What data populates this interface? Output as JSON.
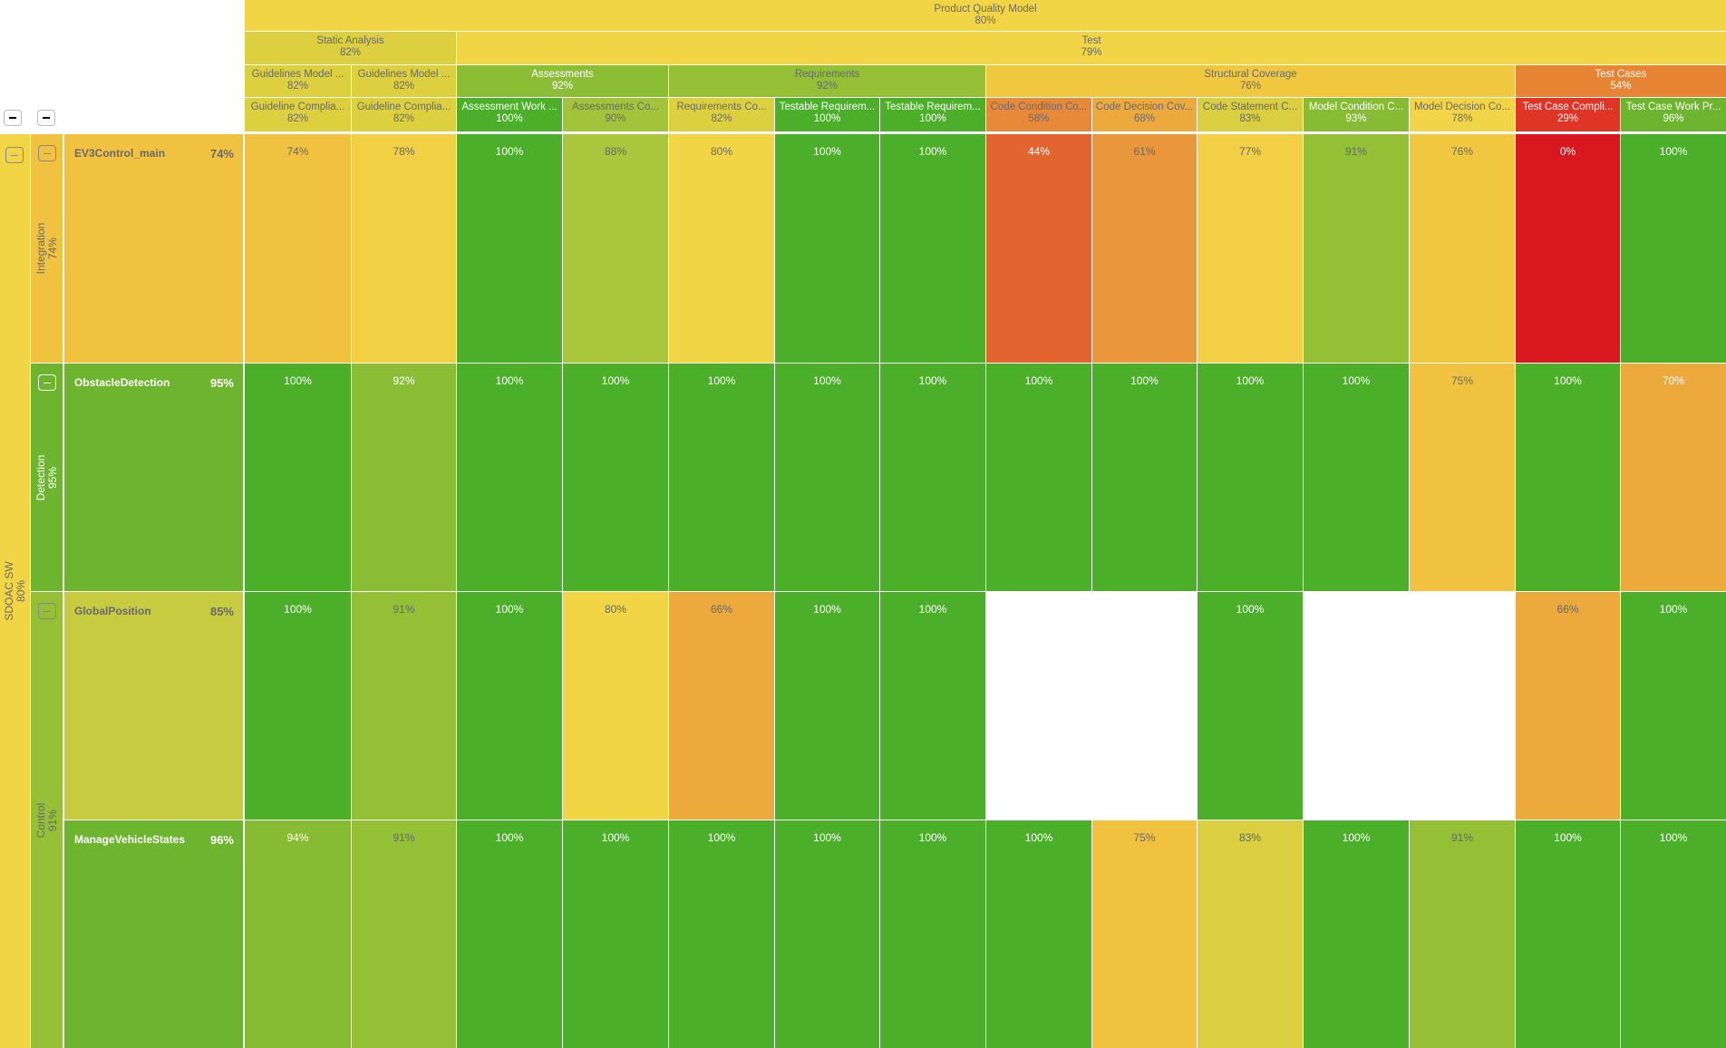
{
  "header": {
    "level1": [
      {
        "label": "Product Quality Model",
        "pct": "80%",
        "span": 14,
        "color": "#f2d544",
        "tone": "dark"
      }
    ],
    "level2": [
      {
        "label": "Static Analysis",
        "pct": "82%",
        "span": 2,
        "color": "#dcd03e",
        "tone": "dark"
      },
      {
        "label": "Test",
        "pct": "79%",
        "span": 12,
        "color": "#f2d544",
        "tone": "dark"
      }
    ],
    "level3": [
      {
        "label": "Guidelines Model ...",
        "pct": "82%",
        "span": 1,
        "color": "#dcd03e",
        "tone": "dark"
      },
      {
        "label": "Guidelines Model ...",
        "pct": "82%",
        "span": 1,
        "color": "#dcd03e",
        "tone": "dark"
      },
      {
        "label": "Assessments",
        "pct": "92%",
        "span": 2,
        "color": "#8bbd35",
        "tone": "light"
      },
      {
        "label": "Requirements",
        "pct": "92%",
        "span": 3,
        "color": "#95bf35",
        "tone": "dark"
      },
      {
        "label": "Structural Coverage",
        "pct": "76%",
        "span": 5,
        "color": "#f0c840",
        "tone": "dark"
      },
      {
        "label": "Test Cases",
        "pct": "54%",
        "span": 2,
        "color": "#e88534",
        "tone": "light"
      }
    ],
    "level4": [
      {
        "label": "Guideline Complia...",
        "pct": "82%",
        "span": 1,
        "color": "#dcd03e",
        "tone": "dark"
      },
      {
        "label": "Guideline Complia...",
        "pct": "82%",
        "span": 1,
        "color": "#dcd03e",
        "tone": "dark"
      },
      {
        "label": "Assessment Work ...",
        "pct": "100%",
        "span": 1,
        "color": "#4caf2a",
        "tone": "light"
      },
      {
        "label": "Assessments Co...",
        "pct": "90%",
        "span": 1,
        "color": "#a2c43a",
        "tone": "dark"
      },
      {
        "label": "Requirements Co...",
        "pct": "82%",
        "span": 1,
        "color": "#dcd03e",
        "tone": "dark"
      },
      {
        "label": "Testable Requirem...",
        "pct": "100%",
        "span": 1,
        "color": "#4caf2a",
        "tone": "light"
      },
      {
        "label": "Testable Requirem...",
        "pct": "100%",
        "span": 1,
        "color": "#4caf2a",
        "tone": "light"
      },
      {
        "label": "Code Condition Co...",
        "pct": "58%",
        "span": 1,
        "color": "#e8893a",
        "tone": "dark"
      },
      {
        "label": "Code Decision Cov...",
        "pct": "68%",
        "span": 1,
        "color": "#edaa3c",
        "tone": "dark"
      },
      {
        "label": "Code Statement C...",
        "pct": "83%",
        "span": 1,
        "color": "#d9cf3f",
        "tone": "dark"
      },
      {
        "label": "Model Condition C...",
        "pct": "93%",
        "span": 1,
        "color": "#86bb33",
        "tone": "light"
      },
      {
        "label": "Model Decision Co...",
        "pct": "78%",
        "span": 1,
        "color": "#f2d546",
        "tone": "dark"
      },
      {
        "label": "Test Case Compli...",
        "pct": "29%",
        "span": 1,
        "color": "#de3526",
        "tone": "light"
      },
      {
        "label": "Test Case Work Pr...",
        "pct": "96%",
        "span": 1,
        "color": "#6db52e",
        "tone": "light"
      }
    ]
  },
  "root": {
    "label": "SDOAC SW",
    "pct": "80%",
    "color": "#f2d544",
    "tone": "dark"
  },
  "groups": [
    {
      "label": "Integration",
      "pct": "74%",
      "rows": 1,
      "color": "#f0c240",
      "tone": "dark"
    },
    {
      "label": "Detection",
      "pct": "95%",
      "rows": 1,
      "color": "#6db52e",
      "tone": "light"
    },
    {
      "label": "Control",
      "pct": "91%",
      "rows": 2,
      "color": "#95bf35",
      "tone": "dark"
    }
  ],
  "rows": [
    {
      "label": "EV3Control_main",
      "pct": "74%",
      "color": "#f0c240",
      "tone": "dark",
      "cells": [
        {
          "v": "74%",
          "c": "#f0c240",
          "t": "dark"
        },
        {
          "v": "78%",
          "c": "#f2d044",
          "t": "dark"
        },
        {
          "v": "100%",
          "c": "#4caf2a",
          "t": "light"
        },
        {
          "v": "88%",
          "c": "#a9c63c",
          "t": "dark"
        },
        {
          "v": "80%",
          "c": "#f2d544",
          "t": "dark"
        },
        {
          "v": "100%",
          "c": "#4caf2a",
          "t": "light"
        },
        {
          "v": "100%",
          "c": "#4caf2a",
          "t": "light"
        },
        {
          "v": "44%",
          "c": "#e3642e",
          "t": "light"
        },
        {
          "v": "61%",
          "c": "#ea963a",
          "t": "dark"
        },
        {
          "v": "77%",
          "c": "#f2cf44",
          "t": "dark"
        },
        {
          "v": "91%",
          "c": "#95bf35",
          "t": "dark"
        },
        {
          "v": "76%",
          "c": "#f0c840",
          "t": "dark"
        },
        {
          "v": "0%",
          "c": "#d9171f",
          "t": "light"
        },
        {
          "v": "100%",
          "c": "#4caf2a",
          "t": "light"
        }
      ]
    },
    {
      "label": "ObstacleDetection",
      "pct": "95%",
      "color": "#6db52e",
      "tone": "light",
      "cells": [
        {
          "v": "100%",
          "c": "#4caf2a",
          "t": "light"
        },
        {
          "v": "92%",
          "c": "#8bbd35",
          "t": "light"
        },
        {
          "v": "100%",
          "c": "#4caf2a",
          "t": "light"
        },
        {
          "v": "100%",
          "c": "#4caf2a",
          "t": "light"
        },
        {
          "v": "100%",
          "c": "#4caf2a",
          "t": "light"
        },
        {
          "v": "100%",
          "c": "#4caf2a",
          "t": "light"
        },
        {
          "v": "100%",
          "c": "#4caf2a",
          "t": "light"
        },
        {
          "v": "100%",
          "c": "#4caf2a",
          "t": "light"
        },
        {
          "v": "100%",
          "c": "#4caf2a",
          "t": "light"
        },
        {
          "v": "100%",
          "c": "#4caf2a",
          "t": "light"
        },
        {
          "v": "100%",
          "c": "#4caf2a",
          "t": "light"
        },
        {
          "v": "75%",
          "c": "#f0c240",
          "t": "dark"
        },
        {
          "v": "100%",
          "c": "#4caf2a",
          "t": "light"
        },
        {
          "v": "70%",
          "c": "#edaa3c",
          "t": "light"
        }
      ]
    },
    {
      "label": "GlobalPosition",
      "pct": "85%",
      "color": "#c6cb40",
      "tone": "dark",
      "cells": [
        {
          "v": "100%",
          "c": "#4caf2a",
          "t": "light"
        },
        {
          "v": "91%",
          "c": "#95bf35",
          "t": "dark"
        },
        {
          "v": "100%",
          "c": "#4caf2a",
          "t": "light"
        },
        {
          "v": "80%",
          "c": "#f2d544",
          "t": "dark"
        },
        {
          "v": "66%",
          "c": "#edaa3c",
          "t": "dark"
        },
        {
          "v": "100%",
          "c": "#4caf2a",
          "t": "light"
        },
        {
          "v": "100%",
          "c": "#4caf2a",
          "t": "light"
        },
        null,
        null,
        {
          "v": "100%",
          "c": "#4caf2a",
          "t": "light"
        },
        null,
        null,
        {
          "v": "66%",
          "c": "#edaa3c",
          "t": "dark"
        },
        {
          "v": "100%",
          "c": "#4caf2a",
          "t": "light"
        }
      ]
    },
    {
      "label": "ManageVehicleStates",
      "pct": "96%",
      "color": "#6db52e",
      "tone": "light",
      "cells": [
        {
          "v": "94%",
          "c": "#86bb33",
          "t": "light"
        },
        {
          "v": "91%",
          "c": "#95bf35",
          "t": "dark"
        },
        {
          "v": "100%",
          "c": "#4caf2a",
          "t": "light"
        },
        {
          "v": "100%",
          "c": "#4caf2a",
          "t": "light"
        },
        {
          "v": "100%",
          "c": "#4caf2a",
          "t": "light"
        },
        {
          "v": "100%",
          "c": "#4caf2a",
          "t": "light"
        },
        {
          "v": "100%",
          "c": "#4caf2a",
          "t": "light"
        },
        {
          "v": "100%",
          "c": "#4caf2a",
          "t": "light"
        },
        {
          "v": "75%",
          "c": "#f0c240",
          "t": "dark"
        },
        {
          "v": "83%",
          "c": "#d9cf3f",
          "t": "dark"
        },
        {
          "v": "100%",
          "c": "#4caf2a",
          "t": "light"
        },
        {
          "v": "91%",
          "c": "#95bf35",
          "t": "dark"
        },
        {
          "v": "100%",
          "c": "#4caf2a",
          "t": "light"
        },
        {
          "v": "100%",
          "c": "#4caf2a",
          "t": "light"
        }
      ]
    }
  ]
}
